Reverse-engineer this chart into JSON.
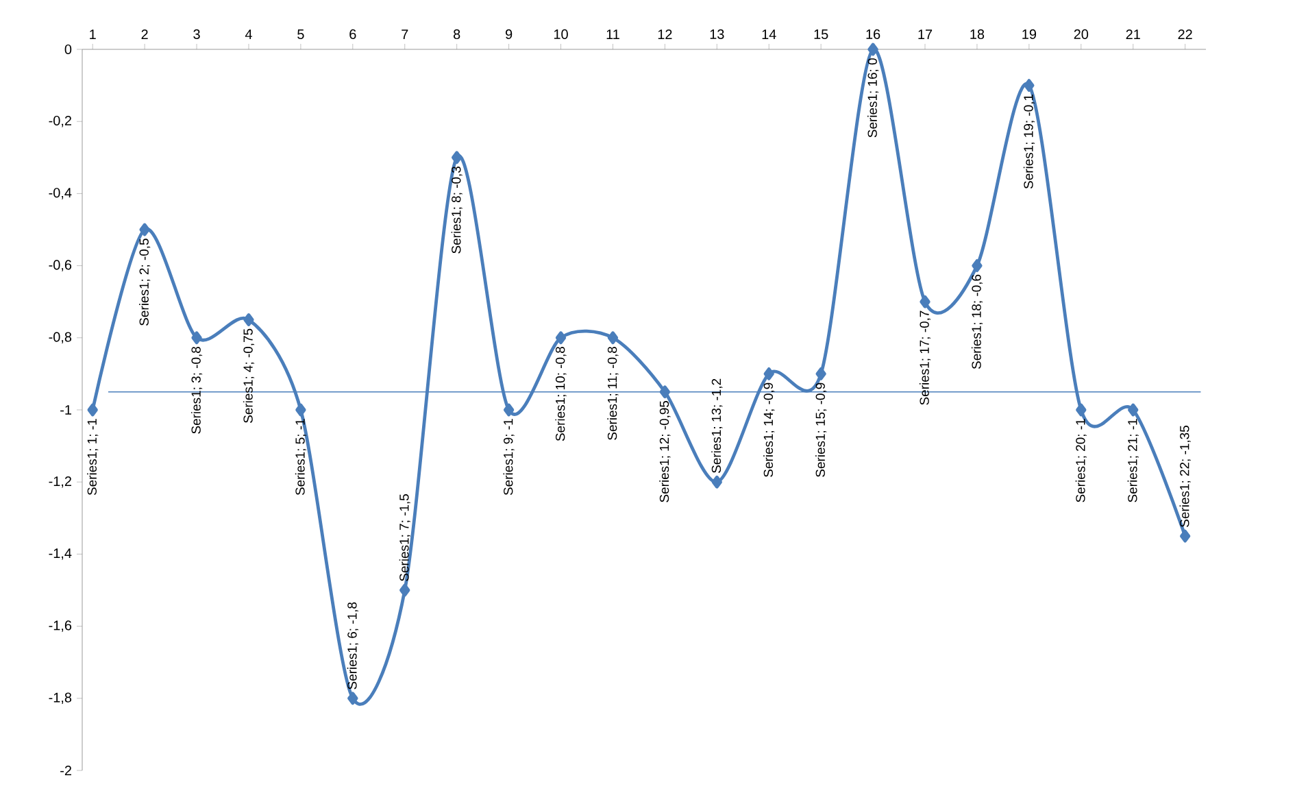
{
  "chart_data": {
    "type": "line",
    "categories": [
      "1",
      "2",
      "3",
      "4",
      "5",
      "6",
      "7",
      "8",
      "9",
      "10",
      "11",
      "12",
      "13",
      "14",
      "15",
      "16",
      "17",
      "18",
      "19",
      "20",
      "21",
      "22"
    ],
    "series": [
      {
        "color": "#4a7ebb",
        "values": [
          -1,
          -0.5,
          -0.8,
          -0.75,
          -1,
          -1.8,
          -1.5,
          -0.3,
          -1,
          -0.8,
          -0.8,
          -0.95,
          -1.2,
          -0.9,
          -0.9,
          0,
          -0.7,
          -0.6,
          -0.1,
          -1,
          -1,
          -1.35
        ],
        "value_labels": [
          "Series1; 1; -1",
          "Series1; 2; -0,5",
          "Series1; 3; -0,8",
          "Series1; 4; -0,75",
          "Series1; 5; -1",
          "Series1; 6; -1,8",
          "Series1; 7; -1,5",
          "Series1; 8; -0,3",
          "Series1; 9; -1",
          "Series1; 10; -0,8",
          "Series1; 11; -0,8",
          "Series1; 12; -0,95",
          "Series1; 13; -1,2",
          "Series1; 14; -0,9",
          "Series1; 15; -0,9",
          "Series1; 16; 0",
          "Series1; 17; -0,7",
          "Series1; 18; -0,6",
          "Series1; 19; -0,1",
          "Series1; 20; -1",
          "Series1; 21; -1",
          "Series1; 22; -1,35"
        ]
      }
    ],
    "ylim": [
      -2,
      0
    ],
    "yticks": [
      {
        "value": -2,
        "label": "-2"
      },
      {
        "value": -1.8,
        "label": "-1,8"
      },
      {
        "value": -1.6,
        "label": "-1,6"
      },
      {
        "value": -1.4,
        "label": "-1,4"
      },
      {
        "value": -1.2,
        "label": "-1,2"
      },
      {
        "value": -1,
        "label": "-1"
      },
      {
        "value": -0.8,
        "label": "-0,8"
      },
      {
        "value": -0.6,
        "label": "-0,6"
      },
      {
        "value": -0.4,
        "label": "-0,4"
      },
      {
        "value": -0.2,
        "label": "-0,2"
      },
      {
        "value": 0,
        "label": "0"
      }
    ],
    "ref_lines": [
      {
        "axis": "y",
        "value": -0.95,
        "color": "#4a7ebb"
      }
    ],
    "marker": "diamond",
    "line_style": "solid"
  }
}
